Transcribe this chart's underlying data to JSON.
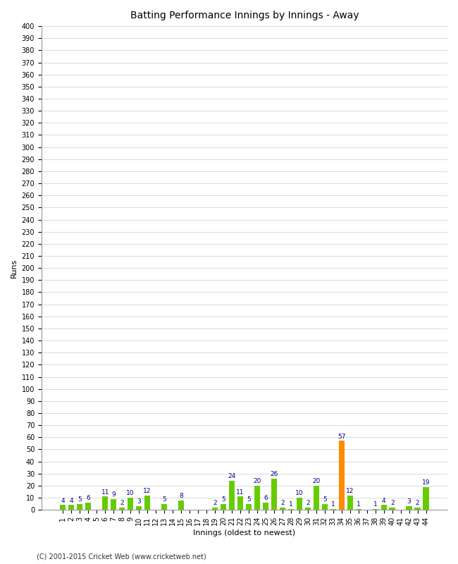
{
  "innings_labels": [
    "1",
    "2",
    "3",
    "4",
    "5",
    "6",
    "7",
    "8",
    "9",
    "10",
    "11",
    "12",
    "13",
    "14",
    "15",
    "16",
    "17",
    "18",
    "19",
    "20",
    "21",
    "22",
    "23",
    "24",
    "25",
    "26",
    "27",
    "28",
    "29",
    "30",
    "31",
    "32",
    "33",
    "34",
    "35",
    "36",
    "37",
    "38",
    "39",
    "40",
    "41",
    "42",
    "43",
    "44"
  ],
  "values": [
    4,
    4,
    5,
    6,
    0,
    11,
    9,
    2,
    10,
    3,
    12,
    0,
    5,
    0,
    8,
    0,
    0,
    0,
    2,
    5,
    24,
    11,
    5,
    20,
    6,
    26,
    2,
    1,
    10,
    2,
    20,
    5,
    1,
    57,
    12,
    1,
    0,
    1,
    4,
    2,
    0,
    3,
    2,
    19
  ],
  "highlight_index": 33,
  "bar_color_normal": "#66cc00",
  "bar_color_highlight": "#ff8c00",
  "label_color": "#00008b",
  "title": "Batting Performance Innings by Innings - Away",
  "xlabel": "Innings (oldest to newest)",
  "ylabel": "Runs",
  "ylim": [
    0,
    400
  ],
  "background_color": "#ffffff",
  "grid_color": "#cccccc",
  "footer": "(C) 2001-2015 Cricket Web (www.cricketweb.net)"
}
